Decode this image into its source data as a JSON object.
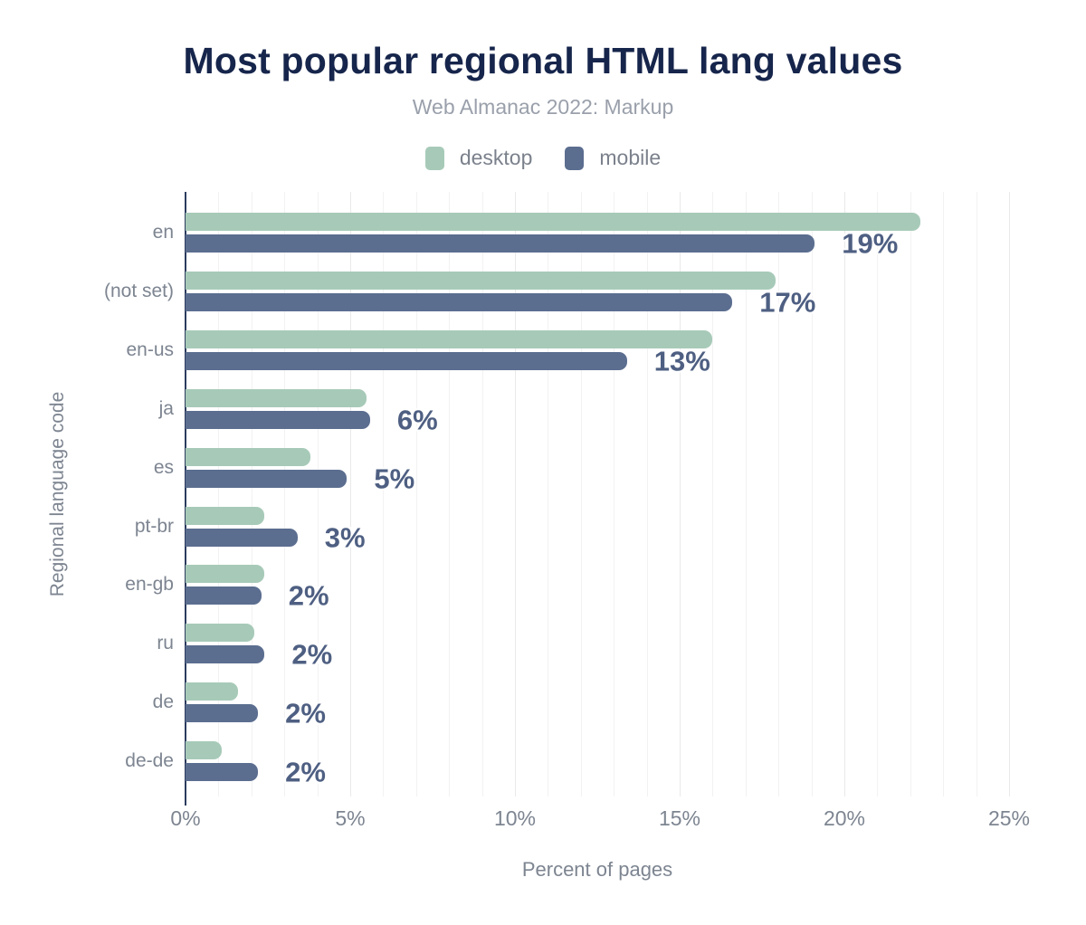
{
  "header": {
    "title": "Most popular regional HTML lang values",
    "subtitle": "Web Almanac 2022: Markup"
  },
  "legend": [
    {
      "label": "desktop",
      "color": "#a7cab8"
    },
    {
      "label": "mobile",
      "color": "#5b6e90"
    }
  ],
  "colors": {
    "title": "#16254b",
    "subtitle": "#9aa0ab",
    "axis_line": "#2c3c5e",
    "axis_text": "#7d8591",
    "value_label": "#4e5f82",
    "desktop_bar": "#a7cab8",
    "mobile_bar": "#5b6e90",
    "gridline": "#f2f2f2"
  },
  "chart_data": {
    "type": "bar",
    "orientation": "horizontal",
    "title": "Most popular regional HTML lang values",
    "subtitle": "Web Almanac 2022: Markup",
    "categories": [
      "en",
      "(not set)",
      "en-us",
      "ja",
      "es",
      "pt-br",
      "en-gb",
      "ru",
      "de",
      "de-de"
    ],
    "series": [
      {
        "name": "desktop",
        "color": "#a7cab8",
        "values": [
          22.3,
          17.9,
          16.0,
          5.5,
          3.8,
          2.4,
          2.4,
          2.1,
          1.6,
          1.1
        ]
      },
      {
        "name": "mobile",
        "color": "#5b6e90",
        "values": [
          19.1,
          16.6,
          13.4,
          5.6,
          4.9,
          3.4,
          2.3,
          2.4,
          2.2,
          2.2
        ]
      }
    ],
    "value_labels": [
      "19%",
      "17%",
      "13%",
      "6%",
      "5%",
      "3%",
      "2%",
      "2%",
      "2%",
      "2%"
    ],
    "value_label_series": "mobile",
    "xlabel": "Percent of pages",
    "ylabel": "Regional language code",
    "xlim": [
      0,
      25
    ],
    "x_tick_values": [
      0,
      5,
      10,
      15,
      20,
      25
    ],
    "x_ticks": [
      "0%",
      "5%",
      "10%",
      "15%",
      "20%",
      "25%"
    ],
    "grid": {
      "vertical_minor_step_pct": 1,
      "vertical_major_step_pct": 5,
      "horizontal": false
    },
    "legend_position": "top"
  }
}
